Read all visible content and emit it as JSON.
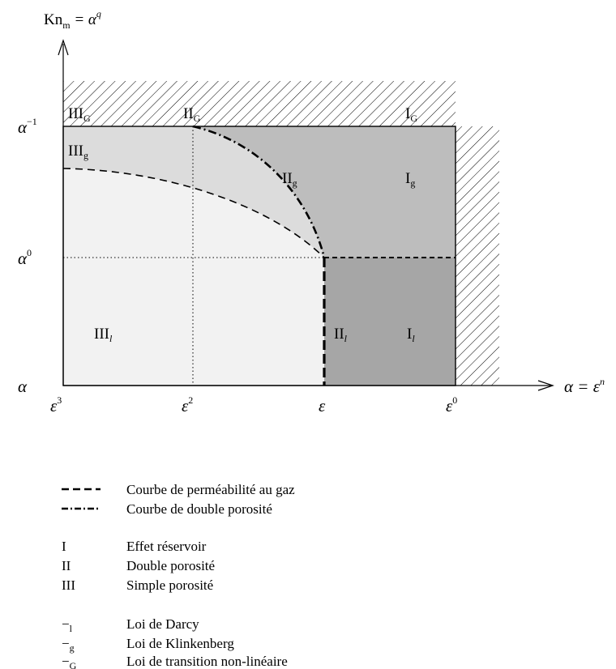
{
  "axes": {
    "y_label": "Kn",
    "y_label_sub": "m",
    "y_label_rest": " = α",
    "y_label_sup": "q",
    "x_label": "α = ε",
    "x_label_sup": "n",
    "y_ticks": [
      {
        "base": "α",
        "sup": "−1"
      },
      {
        "base": "α",
        "sup": "0"
      },
      {
        "base": "α",
        "sup": ""
      }
    ],
    "x_ticks": [
      {
        "base": "ε",
        "sup": "3"
      },
      {
        "base": "ε",
        "sup": "2"
      },
      {
        "base": "ε",
        "sup": ""
      },
      {
        "base": "ε",
        "sup": "0"
      }
    ]
  },
  "regions": [
    {
      "id": "IIIG",
      "base": "III",
      "sub": "G"
    },
    {
      "id": "IIG",
      "base": "II",
      "sub": "G"
    },
    {
      "id": "IG",
      "base": "I",
      "sub": "G"
    },
    {
      "id": "IIIg",
      "base": "III",
      "sub": "g"
    },
    {
      "id": "IIg",
      "base": "II",
      "sub": "g"
    },
    {
      "id": "Ig",
      "base": "I",
      "sub": "g"
    },
    {
      "id": "IIIl",
      "base": "III",
      "sub": "l"
    },
    {
      "id": "IIl",
      "base": "II",
      "sub": "l"
    },
    {
      "id": "Il",
      "base": "I",
      "sub": "l"
    }
  ],
  "legend": {
    "curves": [
      {
        "label": "Courbe de perméabilité au gaz",
        "style": "dashed"
      },
      {
        "label": "Courbe de double porosité",
        "style": "dashdot"
      }
    ],
    "regimes": [
      {
        "key": "I",
        "label": "Effet réservoir"
      },
      {
        "key": "II",
        "label": "Double porosité"
      },
      {
        "key": "III",
        "label": "Simple porosité"
      }
    ],
    "laws": [
      {
        "key": "−",
        "sub": "l",
        "label": "Loi de Darcy"
      },
      {
        "key": "−",
        "sub": "g",
        "label": "Loi de Klinkenberg"
      },
      {
        "key": "−",
        "sub": "G",
        "label": "Loi de transition non-linéaire"
      }
    ]
  },
  "colors": {
    "light_fill": "#f2f2f2",
    "medium_fill": "#dcdcdc",
    "gas_zone_fill": "#bdbdbd",
    "darcy_reservoir_fill": "#a6a6a6"
  }
}
